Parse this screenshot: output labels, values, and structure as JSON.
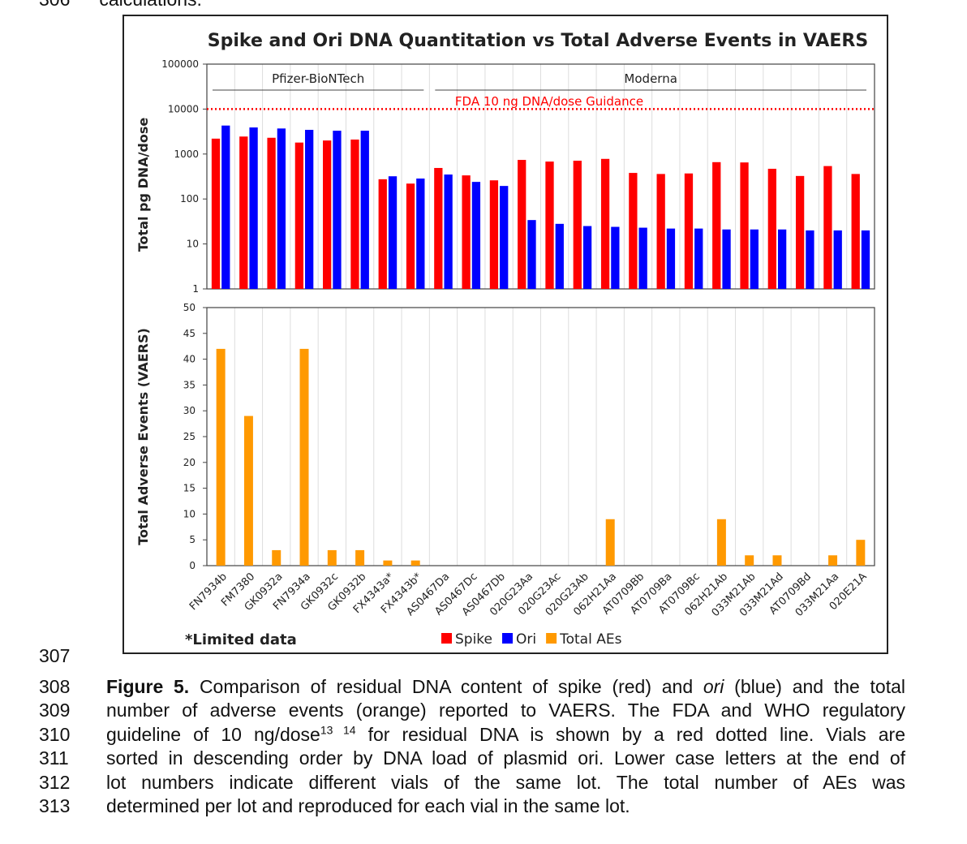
{
  "page": {
    "prev_line_number": "306",
    "prev_line_text": "calculations.",
    "line_numbers": [
      "307",
      "308",
      "309",
      "310",
      "311",
      "312",
      "313"
    ],
    "caption": {
      "label": "Figure 5.",
      "l1a": " Comparison of residual DNA content of spike (red) and ",
      "l1i": "ori",
      "l1b": " (blue) and the total",
      "l2": "number of adverse events (orange) reported to VAERS. The FDA and WHO regulatory",
      "l3a": "guideline of 10 ng/dose",
      "l3sup": "13 14",
      "l3b": " for residual DNA is shown by a red dotted line. Vials are",
      "l4": "sorted in descending order by DNA load of plasmid ori. Lower case letters at the end of",
      "l5": "lot numbers indicate different vials of the same lot. The total number of AEs was",
      "l6": "determined per lot and reproduced for each vial in the same lot."
    }
  },
  "chart_data": {
    "type": "bar",
    "title": "Spike and Ori DNA Quantitation vs Total Adverse Events in VAERS",
    "categories": [
      "FN7934b",
      "FM7380",
      "GK0932a",
      "FN7934a",
      "GK0932c",
      "GK0932b",
      "FX4343a*",
      "FX4343b*",
      "AS0467Da",
      "AS0467Dc",
      "AS0467Db",
      "020G23Aa",
      "020G23Ac",
      "020G23Ab",
      "062H21Aa",
      "AT0709Bb",
      "AT0709Ba",
      "AT0709Bc",
      "062H21Ab",
      "033M21Ab",
      "033M21Ad",
      "AT0709Bd",
      "033M21Aa",
      "020E21A"
    ],
    "panels": [
      {
        "ylabel": "Total pg DNA/dose",
        "yscale": "log",
        "ylim": [
          1,
          100000
        ],
        "yticks": [
          "1",
          "10",
          "100",
          "1000",
          "10000",
          "100000"
        ],
        "series": [
          {
            "name": "Spike",
            "color": "#ff0000",
            "values": [
              2200,
              2450,
              2300,
              1800,
              2000,
              2100,
              275,
              220,
              490,
              335,
              260,
              740,
              680,
              710,
              780,
              380,
              360,
              370,
              660,
              650,
              470,
              325,
              540,
              360
            ]
          },
          {
            "name": "Ori",
            "color": "#0000ff",
            "values": [
              4300,
              3900,
              3700,
              3450,
              3300,
              3300,
              320,
              285,
              350,
              240,
              195,
              34,
              28,
              25,
              24,
              23,
              22,
              22,
              21,
              21,
              21,
              20,
              20,
              20
            ]
          }
        ],
        "groups": [
          {
            "label": "Pfizer-BioNTech",
            "from": 0,
            "to": 7
          },
          {
            "label": "Moderna",
            "from": 8,
            "to": 23
          }
        ],
        "reference_line": {
          "label": "FDA 10 ng DNA/dose Guidance",
          "value": 10000,
          "color": "#ff0000",
          "style": "dotted"
        }
      },
      {
        "ylabel": "Total Adverse Events (VAERS)",
        "yscale": "linear",
        "ylim": [
          0,
          50
        ],
        "yticks": [
          "0",
          "5",
          "10",
          "15",
          "20",
          "25",
          "30",
          "35",
          "40",
          "45",
          "50"
        ],
        "series": [
          {
            "name": "Total AEs",
            "color": "#ff9900",
            "values": [
              42,
              29,
              3,
              42,
              3,
              3,
              1,
              1,
              0,
              0,
              0,
              0,
              0,
              0,
              9,
              0,
              0,
              0,
              9,
              2,
              2,
              0,
              2,
              5
            ]
          }
        ]
      }
    ],
    "legend": {
      "placement": "bottom-center",
      "items": [
        "Spike",
        "Ori",
        "Total AEs"
      ]
    },
    "footnote": "*Limited data",
    "grid": true
  }
}
